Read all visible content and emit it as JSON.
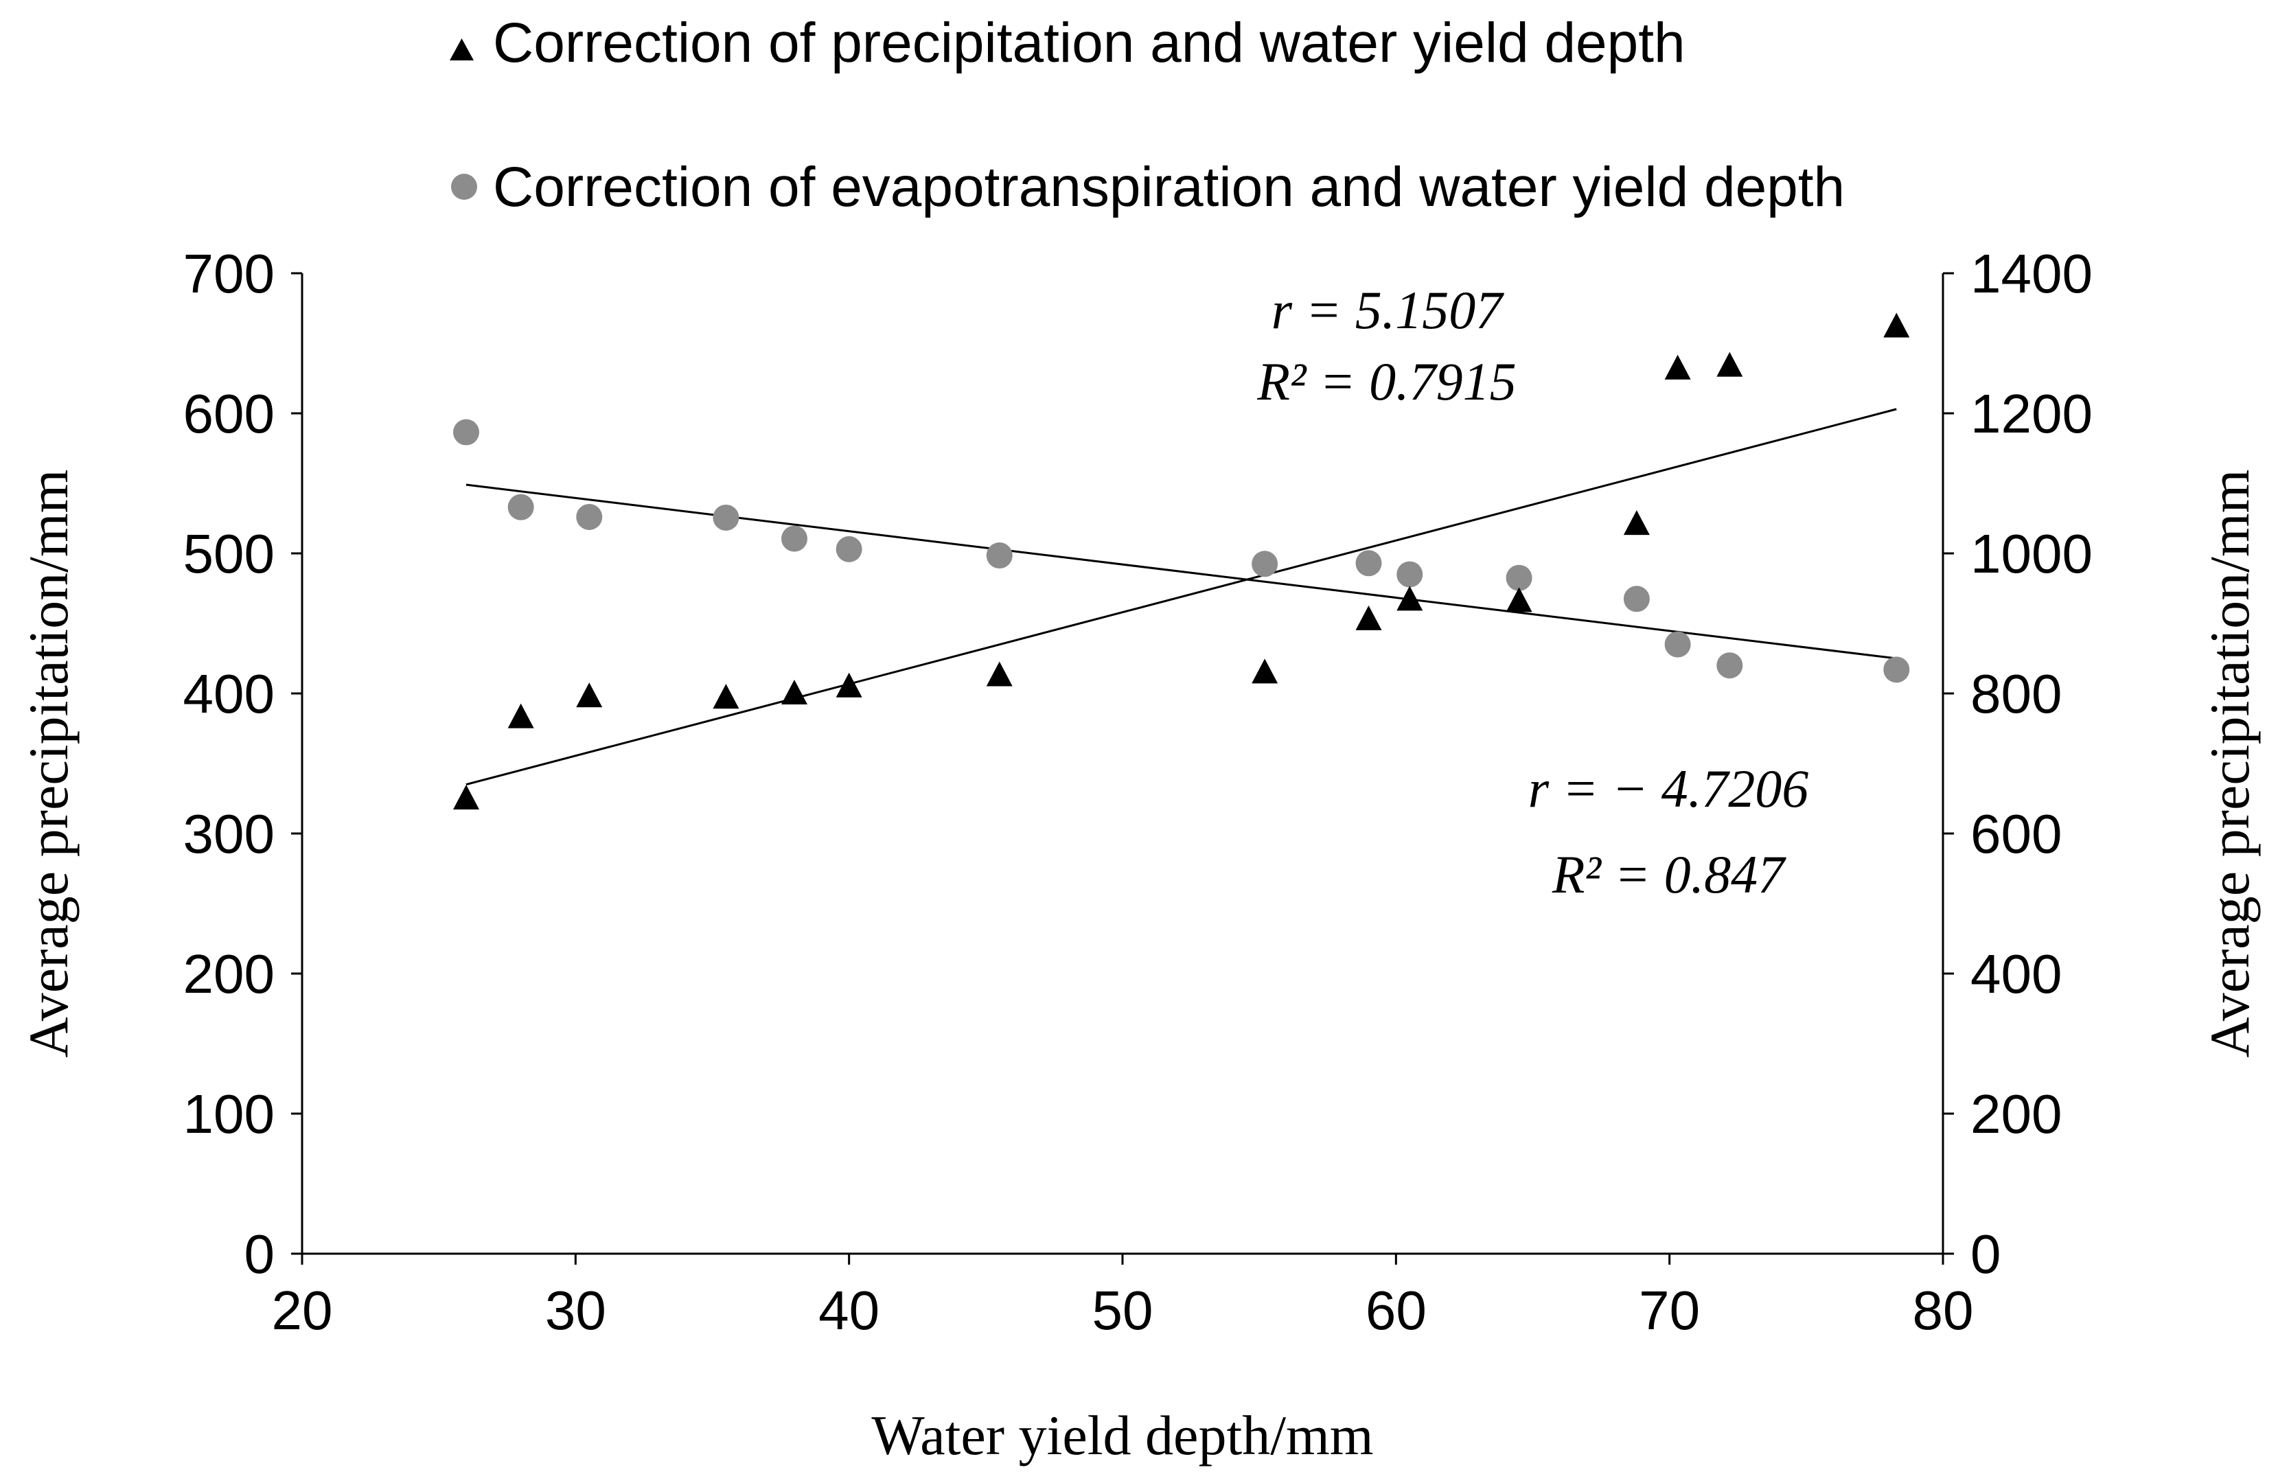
{
  "chart_data": {
    "type": "scatter",
    "xlabel": "Water yield  depth/mm",
    "ylabel_left": "Average  precipitation/mm",
    "ylabel_right": "Average  precipitation/mm",
    "xlim": [
      20,
      80
    ],
    "ylim_left": [
      0,
      700
    ],
    "ylim_right": [
      0,
      1400
    ],
    "x_ticks": [
      "20",
      "30",
      "40",
      "50",
      "60",
      "70",
      "80"
    ],
    "y_left_ticks": [
      "0",
      "100",
      "200",
      "300",
      "400",
      "500",
      "600",
      "700"
    ],
    "y_right_ticks": [
      "0",
      "200",
      "400",
      "600",
      "800",
      "1000",
      "1200",
      "1400"
    ],
    "grid": false,
    "legend_position": "top",
    "series": [
      {
        "name": "Correction of precipitation and water yield depth",
        "marker": "triangle",
        "color": "#000000",
        "axis": "left",
        "points": [
          [
            26,
            325
          ],
          [
            28,
            383
          ],
          [
            30.5,
            398
          ],
          [
            35.5,
            397
          ],
          [
            38,
            400
          ],
          [
            40,
            405
          ],
          [
            45.5,
            413
          ],
          [
            55.2,
            415
          ],
          [
            59,
            453
          ],
          [
            60.5,
            467
          ],
          [
            64.5,
            466
          ],
          [
            68.8,
            521
          ],
          [
            70.3,
            632
          ],
          [
            72.2,
            634
          ],
          [
            78.3,
            662
          ]
        ],
        "trendline": {
          "x": [
            26,
            78.3
          ],
          "y": [
            335,
            603
          ]
        },
        "annotation": {
          "r": "r = 5.1507",
          "r2": "R² = 0.7915"
        }
      },
      {
        "name": "Correction of evapotranspiration and water yield depth",
        "marker": "circle",
        "color": "#8c8c8c",
        "axis": "right",
        "points": [
          [
            26,
            1173
          ],
          [
            28,
            1066
          ],
          [
            30.5,
            1052
          ],
          [
            35.5,
            1051
          ],
          [
            38,
            1021
          ],
          [
            40,
            1006
          ],
          [
            45.5,
            997
          ],
          [
            55.2,
            985
          ],
          [
            59,
            986
          ],
          [
            60.5,
            970
          ],
          [
            64.5,
            965
          ],
          [
            68.8,
            935
          ],
          [
            70.3,
            870
          ],
          [
            72.2,
            840
          ],
          [
            78.3,
            834
          ]
        ],
        "trendline": {
          "x": [
            26,
            78.3
          ],
          "y": [
            1098,
            850
          ]
        },
        "annotation": {
          "r": "r = − 4.7206",
          "r2": "R² = 0.847"
        }
      }
    ]
  }
}
